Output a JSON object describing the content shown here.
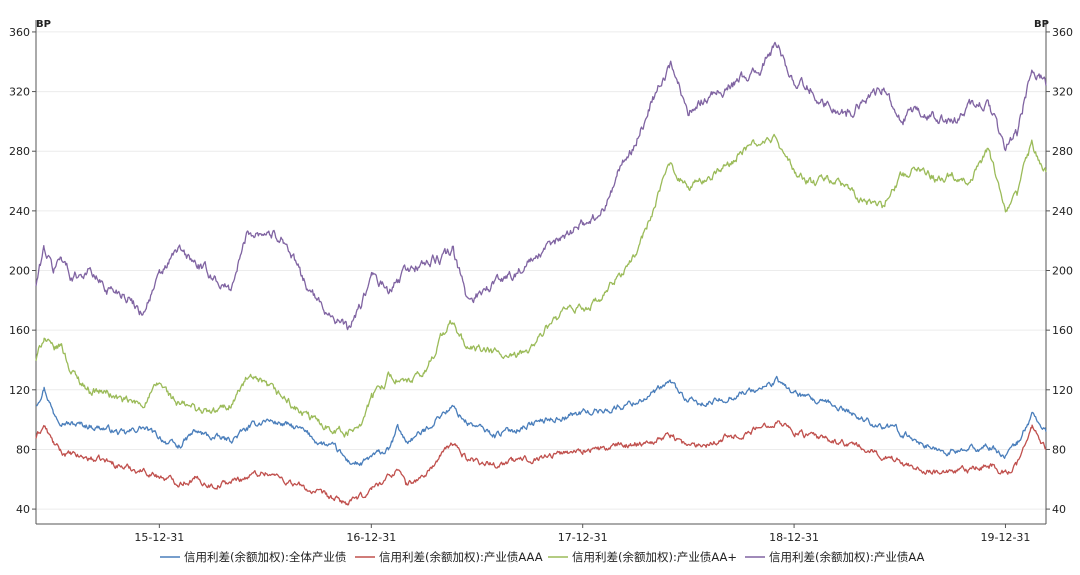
{
  "chart_data": {
    "type": "line",
    "title": "",
    "xlabel": "",
    "ylabel_left": "BP",
    "ylabel_right": "BP",
    "ylim": [
      30,
      368
    ],
    "yticks": [
      40,
      80,
      120,
      160,
      200,
      240,
      280,
      320,
      360
    ],
    "x_range": [
      "2015-06-01",
      "2020-03-10"
    ],
    "x_ticks": [
      {
        "date": "2015-12-31",
        "label": "15-12-31"
      },
      {
        "date": "2016-12-31",
        "label": "16-12-31"
      },
      {
        "date": "2017-12-31",
        "label": "17-12-31"
      },
      {
        "date": "2018-12-31",
        "label": "18-12-31"
      },
      {
        "date": "2019-12-31",
        "label": "19-12-31"
      }
    ],
    "grid": {
      "horizontal": true,
      "vertical": false
    },
    "legend_position": "bottom",
    "series": [
      {
        "name": "信用利差(余额加权):全体产业债",
        "color": "#4a7ebb",
        "points": [
          [
            "2015-06-01",
            110
          ],
          [
            "2015-06-15",
            122
          ],
          [
            "2015-07-01",
            105
          ],
          [
            "2015-07-15",
            100
          ],
          [
            "2015-08-01",
            97
          ],
          [
            "2015-09-01",
            96
          ],
          [
            "2015-10-01",
            94
          ],
          [
            "2015-11-01",
            90
          ],
          [
            "2015-12-01",
            95
          ],
          [
            "2016-01-01",
            88
          ],
          [
            "2016-02-01",
            81
          ],
          [
            "2016-03-01",
            92
          ],
          [
            "2016-04-01",
            88
          ],
          [
            "2016-05-01",
            86
          ],
          [
            "2016-06-01",
            94
          ],
          [
            "2016-07-01",
            100
          ],
          [
            "2016-08-01",
            97
          ],
          [
            "2016-09-01",
            93
          ],
          [
            "2016-10-01",
            85
          ],
          [
            "2016-11-01",
            80
          ],
          [
            "2016-11-20",
            72
          ],
          [
            "2016-12-15",
            70
          ],
          [
            "2017-01-01",
            75
          ],
          [
            "2017-02-01",
            80
          ],
          [
            "2017-02-15",
            95
          ],
          [
            "2017-03-01",
            85
          ],
          [
            "2017-04-01",
            92
          ],
          [
            "2017-05-01",
            104
          ],
          [
            "2017-05-20",
            108
          ],
          [
            "2017-06-15",
            98
          ],
          [
            "2017-08-01",
            90
          ],
          [
            "2017-09-01",
            93
          ],
          [
            "2017-10-01",
            97
          ],
          [
            "2017-11-01",
            100
          ],
          [
            "2017-12-01",
            102
          ],
          [
            "2018-01-01",
            105
          ],
          [
            "2018-02-01",
            106
          ],
          [
            "2018-03-01",
            108
          ],
          [
            "2018-04-01",
            112
          ],
          [
            "2018-05-01",
            117
          ],
          [
            "2018-06-01",
            125
          ],
          [
            "2018-07-01",
            112
          ],
          [
            "2018-08-01",
            110
          ],
          [
            "2018-09-01",
            114
          ],
          [
            "2018-10-01",
            118
          ],
          [
            "2018-11-01",
            120
          ],
          [
            "2018-12-01",
            126
          ],
          [
            "2019-01-01",
            118
          ],
          [
            "2019-02-01",
            112
          ],
          [
            "2019-03-01",
            110
          ],
          [
            "2019-04-01",
            106
          ],
          [
            "2019-05-01",
            100
          ],
          [
            "2019-06-01",
            96
          ],
          [
            "2019-07-01",
            92
          ],
          [
            "2019-08-01",
            86
          ],
          [
            "2019-09-01",
            80
          ],
          [
            "2019-10-01",
            78
          ],
          [
            "2019-11-01",
            80
          ],
          [
            "2019-12-01",
            82
          ],
          [
            "2020-01-01",
            76
          ],
          [
            "2020-01-20",
            84
          ],
          [
            "2020-02-01",
            92
          ],
          [
            "2020-02-15",
            104
          ],
          [
            "2020-03-01",
            96
          ],
          [
            "2020-03-10",
            92
          ]
        ]
      },
      {
        "name": "信用利差(余额加权):产业债AAA",
        "color": "#c0504d",
        "points": [
          [
            "2015-06-01",
            88
          ],
          [
            "2015-06-15",
            96
          ],
          [
            "2015-07-01",
            84
          ],
          [
            "2015-07-15",
            78
          ],
          [
            "2015-08-01",
            76
          ],
          [
            "2015-09-01",
            74
          ],
          [
            "2015-10-01",
            72
          ],
          [
            "2015-11-01",
            68
          ],
          [
            "2015-12-01",
            66
          ],
          [
            "2016-01-01",
            62
          ],
          [
            "2016-02-01",
            58
          ],
          [
            "2016-03-01",
            60
          ],
          [
            "2016-04-01",
            56
          ],
          [
            "2016-05-01",
            58
          ],
          [
            "2016-06-01",
            62
          ],
          [
            "2016-07-01",
            65
          ],
          [
            "2016-08-01",
            60
          ],
          [
            "2016-09-01",
            55
          ],
          [
            "2016-10-01",
            50
          ],
          [
            "2016-11-01",
            46
          ],
          [
            "2016-11-20",
            44
          ],
          [
            "2016-12-15",
            48
          ],
          [
            "2017-01-01",
            54
          ],
          [
            "2017-02-01",
            62
          ],
          [
            "2017-02-15",
            68
          ],
          [
            "2017-03-01",
            56
          ],
          [
            "2017-04-01",
            62
          ],
          [
            "2017-05-01",
            76
          ],
          [
            "2017-05-20",
            84
          ],
          [
            "2017-06-15",
            74
          ],
          [
            "2017-08-01",
            70
          ],
          [
            "2017-09-01",
            72
          ],
          [
            "2017-10-01",
            74
          ],
          [
            "2017-11-01",
            76
          ],
          [
            "2017-12-01",
            78
          ],
          [
            "2018-01-01",
            80
          ],
          [
            "2018-02-01",
            80
          ],
          [
            "2018-03-01",
            82
          ],
          [
            "2018-04-01",
            84
          ],
          [
            "2018-05-01",
            86
          ],
          [
            "2018-06-01",
            90
          ],
          [
            "2018-07-01",
            82
          ],
          [
            "2018-08-01",
            84
          ],
          [
            "2018-09-01",
            88
          ],
          [
            "2018-10-01",
            90
          ],
          [
            "2018-11-01",
            94
          ],
          [
            "2018-12-01",
            100
          ],
          [
            "2019-01-01",
            92
          ],
          [
            "2019-02-01",
            88
          ],
          [
            "2019-03-01",
            86
          ],
          [
            "2019-04-01",
            84
          ],
          [
            "2019-05-01",
            80
          ],
          [
            "2019-06-01",
            76
          ],
          [
            "2019-07-01",
            72
          ],
          [
            "2019-08-01",
            68
          ],
          [
            "2019-09-01",
            65
          ],
          [
            "2019-10-01",
            64
          ],
          [
            "2019-11-01",
            66
          ],
          [
            "2019-12-01",
            70
          ],
          [
            "2020-01-01",
            64
          ],
          [
            "2020-01-20",
            70
          ],
          [
            "2020-02-01",
            80
          ],
          [
            "2020-02-15",
            96
          ],
          [
            "2020-03-01",
            84
          ],
          [
            "2020-03-10",
            80
          ]
        ]
      },
      {
        "name": "信用利差(余额加权):产业债AA+",
        "color": "#9bbb59",
        "points": [
          [
            "2015-06-01",
            140
          ],
          [
            "2015-06-15",
            156
          ],
          [
            "2015-07-01",
            146
          ],
          [
            "2015-07-15",
            150
          ],
          [
            "2015-08-01",
            132
          ],
          [
            "2015-09-01",
            120
          ],
          [
            "2015-10-01",
            118
          ],
          [
            "2015-11-01",
            112
          ],
          [
            "2015-12-01",
            110
          ],
          [
            "2016-01-01",
            124
          ],
          [
            "2016-02-01",
            110
          ],
          [
            "2016-03-01",
            108
          ],
          [
            "2016-04-01",
            104
          ],
          [
            "2016-05-01",
            110
          ],
          [
            "2016-06-01",
            128
          ],
          [
            "2016-07-01",
            122
          ],
          [
            "2016-08-01",
            115
          ],
          [
            "2016-09-01",
            104
          ],
          [
            "2016-10-01",
            98
          ],
          [
            "2016-11-01",
            94
          ],
          [
            "2016-11-20",
            90
          ],
          [
            "2016-12-15",
            100
          ],
          [
            "2017-01-01",
            115
          ],
          [
            "2017-02-01",
            130
          ],
          [
            "2017-03-01",
            124
          ],
          [
            "2017-04-01",
            130
          ],
          [
            "2017-05-01",
            156
          ],
          [
            "2017-05-20",
            165
          ],
          [
            "2017-06-15",
            148
          ],
          [
            "2017-08-01",
            145
          ],
          [
            "2017-09-01",
            140
          ],
          [
            "2017-10-01",
            148
          ],
          [
            "2017-11-01",
            162
          ],
          [
            "2017-12-01",
            172
          ],
          [
            "2018-01-01",
            175
          ],
          [
            "2018-02-01",
            180
          ],
          [
            "2018-03-01",
            195
          ],
          [
            "2018-04-01",
            210
          ],
          [
            "2018-05-01",
            240
          ],
          [
            "2018-06-01",
            272
          ],
          [
            "2018-07-01",
            255
          ],
          [
            "2018-08-01",
            262
          ],
          [
            "2018-09-01",
            268
          ],
          [
            "2018-10-01",
            280
          ],
          [
            "2018-11-01",
            286
          ],
          [
            "2018-12-01",
            288
          ],
          [
            "2019-01-01",
            265
          ],
          [
            "2019-02-01",
            258
          ],
          [
            "2019-03-01",
            262
          ],
          [
            "2019-04-01",
            255
          ],
          [
            "2019-05-01",
            245
          ],
          [
            "2019-06-01",
            244
          ],
          [
            "2019-07-01",
            262
          ],
          [
            "2019-08-01",
            270
          ],
          [
            "2019-09-01",
            262
          ],
          [
            "2019-10-01",
            264
          ],
          [
            "2019-11-01",
            262
          ],
          [
            "2019-12-01",
            280
          ],
          [
            "2020-01-01",
            240
          ],
          [
            "2020-01-20",
            250
          ],
          [
            "2020-02-01",
            268
          ],
          [
            "2020-02-15",
            286
          ],
          [
            "2020-03-01",
            272
          ],
          [
            "2020-03-10",
            266
          ]
        ]
      },
      {
        "name": "信用利差(余额加权):产业债AA",
        "color": "#8064a2",
        "points": [
          [
            "2015-06-01",
            190
          ],
          [
            "2015-06-15",
            215
          ],
          [
            "2015-07-01",
            200
          ],
          [
            "2015-07-15",
            210
          ],
          [
            "2015-08-01",
            196
          ],
          [
            "2015-09-01",
            200
          ],
          [
            "2015-10-01",
            188
          ],
          [
            "2015-11-01",
            185
          ],
          [
            "2015-12-01",
            172
          ],
          [
            "2016-01-01",
            196
          ],
          [
            "2016-02-01",
            214
          ],
          [
            "2016-03-01",
            205
          ],
          [
            "2016-04-01",
            196
          ],
          [
            "2016-05-01",
            186
          ],
          [
            "2016-06-01",
            226
          ],
          [
            "2016-07-01",
            226
          ],
          [
            "2016-08-01",
            222
          ],
          [
            "2016-09-01",
            196
          ],
          [
            "2016-10-01",
            178
          ],
          [
            "2016-11-01",
            168
          ],
          [
            "2016-11-20",
            160
          ],
          [
            "2016-12-15",
            178
          ],
          [
            "2017-01-01",
            196
          ],
          [
            "2017-02-01",
            185
          ],
          [
            "2017-03-01",
            200
          ],
          [
            "2017-04-01",
            205
          ],
          [
            "2017-05-01",
            208
          ],
          [
            "2017-05-20",
            214
          ],
          [
            "2017-06-15",
            180
          ],
          [
            "2017-08-01",
            192
          ],
          [
            "2017-09-01",
            198
          ],
          [
            "2017-10-01",
            205
          ],
          [
            "2017-11-01",
            214
          ],
          [
            "2017-12-01",
            225
          ],
          [
            "2018-01-01",
            232
          ],
          [
            "2018-02-01",
            238
          ],
          [
            "2018-03-01",
            265
          ],
          [
            "2018-04-01",
            285
          ],
          [
            "2018-05-01",
            315
          ],
          [
            "2018-06-01",
            338
          ],
          [
            "2018-07-01",
            308
          ],
          [
            "2018-08-01",
            316
          ],
          [
            "2018-09-01",
            322
          ],
          [
            "2018-10-01",
            328
          ],
          [
            "2018-11-01",
            334
          ],
          [
            "2018-12-01",
            352
          ],
          [
            "2019-01-01",
            326
          ],
          [
            "2019-02-01",
            322
          ],
          [
            "2019-03-01",
            310
          ],
          [
            "2019-04-01",
            304
          ],
          [
            "2019-05-01",
            316
          ],
          [
            "2019-06-01",
            322
          ],
          [
            "2019-07-01",
            300
          ],
          [
            "2019-08-01",
            306
          ],
          [
            "2019-09-01",
            302
          ],
          [
            "2019-10-01",
            298
          ],
          [
            "2019-11-01",
            310
          ],
          [
            "2019-12-01",
            312
          ],
          [
            "2020-01-01",
            280
          ],
          [
            "2020-01-20",
            292
          ],
          [
            "2020-02-01",
            312
          ],
          [
            "2020-02-15",
            332
          ],
          [
            "2020-03-01",
            330
          ],
          [
            "2020-03-10",
            324
          ]
        ]
      }
    ]
  }
}
